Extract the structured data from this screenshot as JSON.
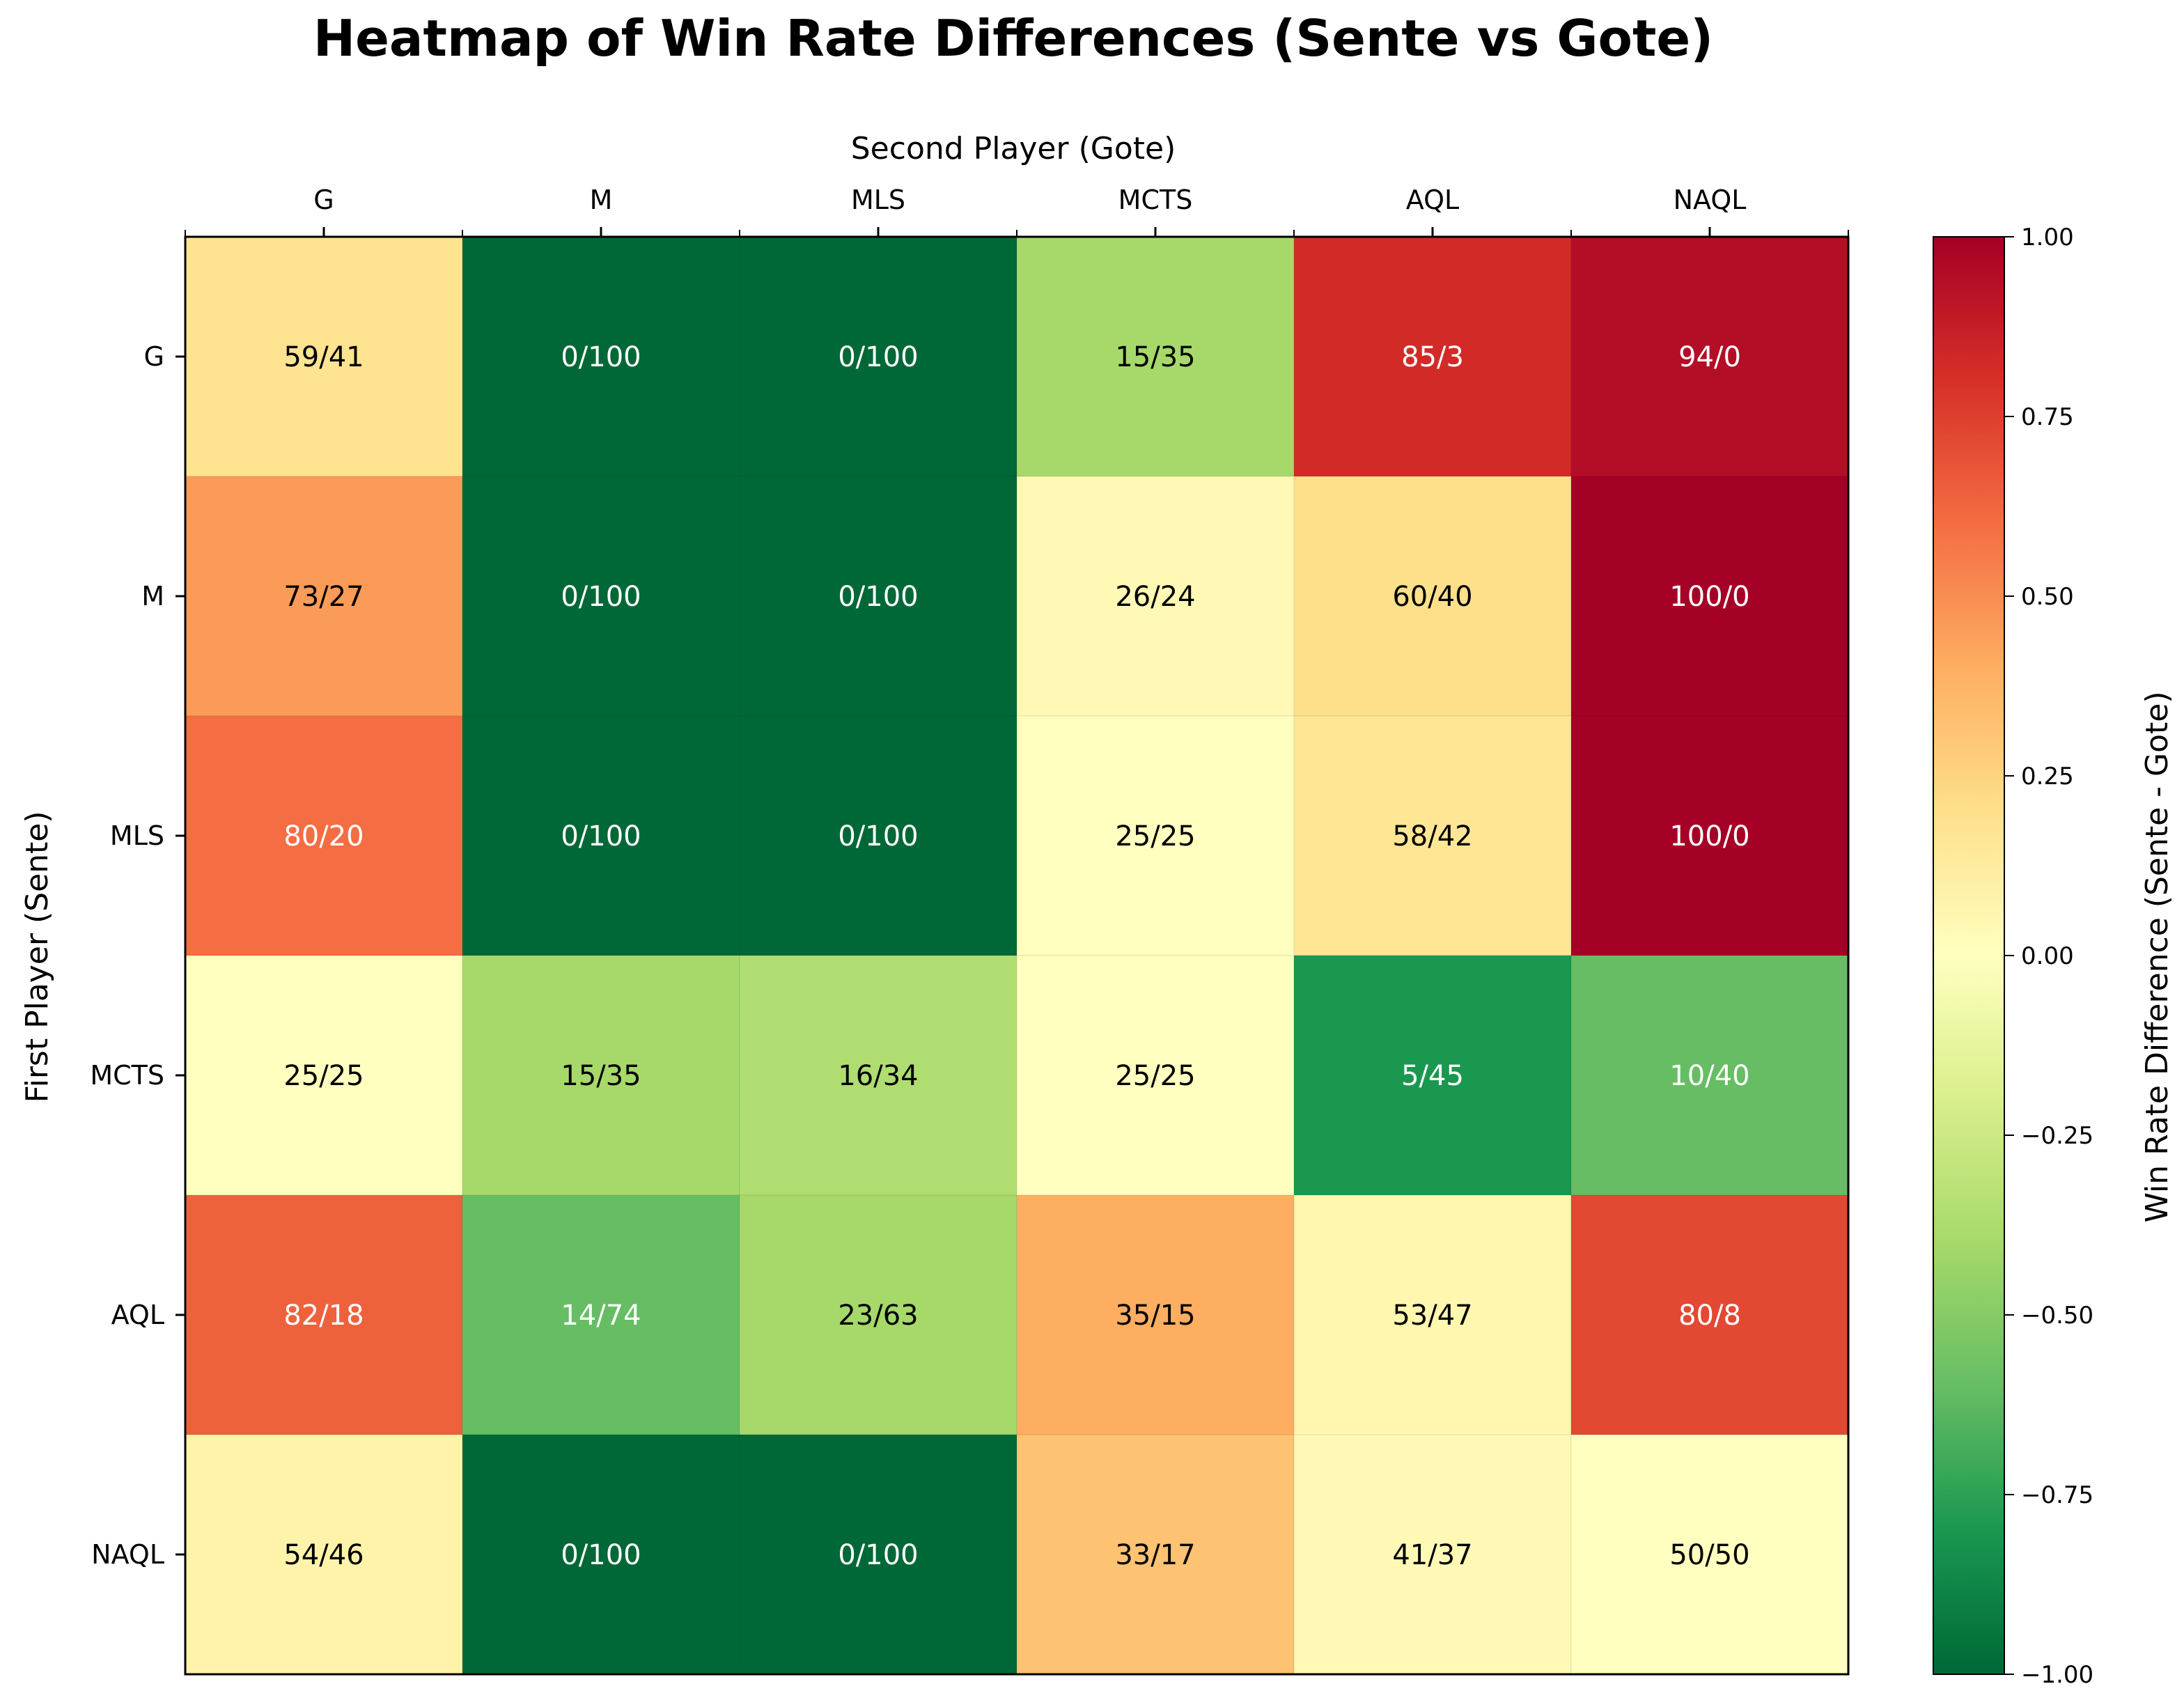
{
  "chart_data": {
    "type": "heatmap",
    "title": "Heatmap of Win Rate Differences (Sente vs Gote)",
    "xlabel": "Second Player (Gote)",
    "ylabel": "First Player (Sente)",
    "colorbar_label": "Win Rate Difference (Sente - Gote)",
    "x_categories": [
      "G",
      "M",
      "MLS",
      "MCTS",
      "AQL",
      "NAQL"
    ],
    "y_categories": [
      "G",
      "M",
      "MLS",
      "MCTS",
      "AQL",
      "NAQL"
    ],
    "cell_labels": [
      [
        "59/41",
        "0/100",
        "0/100",
        "15/35",
        "85/3",
        "94/0"
      ],
      [
        "73/27",
        "0/100",
        "0/100",
        "26/24",
        "60/40",
        "100/0"
      ],
      [
        "80/20",
        "0/100",
        "0/100",
        "25/25",
        "58/42",
        "100/0"
      ],
      [
        "25/25",
        "15/35",
        "16/34",
        "25/25",
        "5/45",
        "10/40"
      ],
      [
        "82/18",
        "14/74",
        "23/63",
        "35/15",
        "53/47",
        "80/8"
      ],
      [
        "54/46",
        "0/100",
        "0/100",
        "33/17",
        "41/37",
        "50/50"
      ]
    ],
    "values": [
      [
        0.18,
        -1.0,
        -1.0,
        -0.4,
        0.82,
        0.94
      ],
      [
        0.46,
        -1.0,
        -1.0,
        0.04,
        0.2,
        1.0
      ],
      [
        0.6,
        -1.0,
        -1.0,
        0.0,
        0.16,
        1.0
      ],
      [
        0.0,
        -0.4,
        -0.36,
        0.0,
        -0.8,
        -0.6
      ],
      [
        0.64,
        -0.6,
        -0.4,
        0.4,
        0.06,
        0.72
      ],
      [
        0.08,
        -1.0,
        -1.0,
        0.32,
        0.04,
        0.0
      ]
    ],
    "colormap": "RdYlGn_r",
    "vmin": -1.0,
    "vmax": 1.0,
    "colorbar_ticks": [
      "1.00",
      "0.75",
      "0.50",
      "0.25",
      "0.00",
      "−0.25",
      "−0.50",
      "−0.75",
      "−1.00"
    ]
  }
}
